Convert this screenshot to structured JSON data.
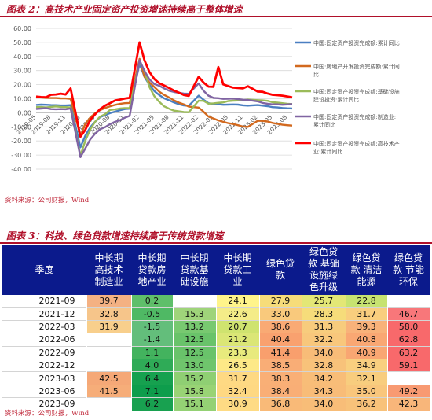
{
  "figure2": {
    "caption": "图表 2：高技术产业固定资产投资增速持续高于整体增速",
    "source": "资料来源：公司财报，Wind"
  },
  "figure3": {
    "caption": "图表 3：科技、绿色贷款增速持续高于传统贷款增速",
    "source": "资料来源：公司财报，Wind"
  },
  "chart_data": [
    {
      "type": "line",
      "title": "",
      "xlabel": "",
      "ylabel": "",
      "ylim": [
        -40,
        60
      ],
      "yticks": [
        "60.00",
        "50.00",
        "40.00",
        "30.00",
        "20.00",
        "10.00",
        "0.00",
        "-10.00",
        "-20.00",
        "-30.00",
        "-40.00"
      ],
      "ytick_values": [
        60,
        50,
        40,
        30,
        20,
        10,
        0,
        -10,
        -20,
        -30,
        -40
      ],
      "x": [
        "2019-05",
        "2019-06",
        "2019-07",
        "2019-08",
        "2019-09",
        "2019-10",
        "2019-11",
        "2019-12",
        "2020-01",
        "2020-02",
        "2020-03",
        "2020-04",
        "2020-05",
        "2020-06",
        "2020-07",
        "2020-08",
        "2020-09",
        "2020-10",
        "2020-11",
        "2020-12",
        "2021-01",
        "2021-02",
        "2021-03",
        "2021-04",
        "2021-05",
        "2021-06",
        "2021-07",
        "2021-08",
        "2021-09",
        "2021-10",
        "2021-11",
        "2021-12",
        "2022-01",
        "2022-02",
        "2022-03",
        "2022-04",
        "2022-05",
        "2022-06",
        "2022-07",
        "2022-08",
        "2022-09",
        "2022-10",
        "2022-11",
        "2022-12",
        "2023-01",
        "2023-02",
        "2023-03",
        "2023-04",
        "2023-05",
        "2023-06",
        "2023-07",
        "2023-08",
        "2023-09"
      ],
      "xtick_labels": [
        "2019-05",
        "2019-08",
        "2019-11",
        "2020-02",
        "2020-05",
        "2020-08",
        "2020-11",
        "2021-02",
        "2021-05",
        "2021-08",
        "2021-11",
        "2022-02",
        "2022-05",
        "2022-08",
        "2022-11",
        "2023-02",
        "2023-05",
        "2023-08"
      ],
      "grid": true,
      "legend_position": "right",
      "series": [
        {
          "name": "中国:固定资产投资完成额:累计同比",
          "color": "#4a7fc1",
          "values": [
            5.6,
            5.8,
            5.7,
            5.5,
            5.4,
            5.2,
            5.2,
            5.4,
            null,
            -24.5,
            -16.1,
            -10.3,
            -6.3,
            -3.1,
            -1.6,
            -0.3,
            0.8,
            1.8,
            2.6,
            2.9,
            null,
            35.0,
            25.6,
            19.9,
            15.4,
            12.6,
            10.3,
            8.9,
            7.3,
            6.1,
            5.2,
            4.9,
            null,
            12.2,
            9.3,
            6.8,
            6.2,
            6.1,
            5.7,
            5.8,
            5.9,
            5.8,
            5.3,
            5.1,
            null,
            5.5,
            5.1,
            4.7,
            4.0,
            3.8,
            3.4,
            3.2,
            3.1
          ]
        },
        {
          "name": "中国:房地产开发投资完成额:累计同比",
          "color": "#d2691e",
          "values": [
            11.2,
            10.9,
            10.6,
            10.5,
            10.5,
            10.3,
            10.2,
            9.9,
            null,
            -16.3,
            -7.7,
            -3.3,
            -0.3,
            1.9,
            3.4,
            4.6,
            5.6,
            6.3,
            6.8,
            7.0,
            null,
            38.3,
            25.6,
            21.6,
            18.3,
            15.0,
            12.7,
            10.9,
            8.8,
            7.2,
            6.0,
            4.4,
            null,
            3.7,
            0.7,
            -2.7,
            -4.0,
            -5.4,
            -6.4,
            -7.4,
            -8.0,
            -8.8,
            -9.8,
            -10.0,
            null,
            -5.7,
            -5.8,
            -6.2,
            -7.2,
            -7.9,
            -8.5,
            -8.8,
            -9.1
          ]
        },
        {
          "name": "中国:固定资产投资完成额:基础设施建设投资:累计同比",
          "color": "#9bbb59",
          "values": [
            4.0,
            4.1,
            3.8,
            4.2,
            4.5,
            4.2,
            4.0,
            3.8,
            null,
            -30.3,
            -19.7,
            -11.8,
            -6.3,
            -2.7,
            -1.0,
            2.0,
            2.4,
            3.0,
            3.3,
            3.4,
            null,
            36.6,
            29.7,
            18.4,
            11.8,
            7.8,
            4.6,
            2.9,
            1.5,
            1.0,
            0.5,
            0.4,
            null,
            8.6,
            8.5,
            6.5,
            6.7,
            7.1,
            7.4,
            8.3,
            8.6,
            8.7,
            8.9,
            9.4,
            null,
            9.0,
            8.8,
            8.5,
            7.5,
            7.2,
            6.8,
            6.4,
            6.2
          ]
        },
        {
          "name": "中国:固定资产投资完成额:制造业:累计同比",
          "color": "#8064a2",
          "values": [
            2.7,
            3.0,
            3.3,
            2.6,
            2.5,
            2.6,
            2.5,
            3.1,
            null,
            -31.5,
            -25.2,
            -18.8,
            -14.8,
            -11.7,
            -10.2,
            -8.1,
            -6.5,
            -5.3,
            -3.5,
            -2.2,
            null,
            37.3,
            29.8,
            23.8,
            20.4,
            19.2,
            17.3,
            15.7,
            14.8,
            14.2,
            13.7,
            13.5,
            null,
            20.9,
            15.6,
            12.2,
            10.6,
            10.4,
            9.9,
            10.0,
            10.1,
            9.7,
            9.3,
            9.1,
            null,
            8.1,
            7.0,
            6.4,
            6.0,
            6.0,
            5.7,
            5.9,
            6.2
          ]
        },
        {
          "name": "中国:固定资产投资完成额:高技术产业:累计同比",
          "color": "#ff0000",
          "values": [
            11.5,
            11.2,
            11.0,
            12.8,
            13.0,
            13.6,
            13.0,
            17.3,
            null,
            -17.0,
            -12.0,
            -5.0,
            -1.0,
            2.6,
            5.1,
            6.8,
            8.7,
            9.4,
            10.1,
            10.6,
            null,
            50.0,
            37.3,
            29.0,
            24.0,
            21.0,
            19.4,
            17.6,
            15.8,
            14.3,
            12.7,
            12.0,
            null,
            25.6,
            21.5,
            18.6,
            18.5,
            32.5,
            20.2,
            19.0,
            17.9,
            17.6,
            17.3,
            18.9,
            null,
            15.1,
            14.9,
            13.7,
            12.8,
            12.5,
            12.2,
            11.6,
            11.0
          ]
        }
      ]
    },
    {
      "type": "table",
      "columns": [
        "季度",
        "中长期\n高技术\n制造业",
        "中长期\n贷款房\n地产业",
        "中长期\n贷款基\n础设施",
        "中长期\n贷款工\n业",
        "绿色贷\n款",
        "绿色贷\n款 基础\n设施绿\n色升级",
        "绿色贷\n款 清洁\n能源",
        "绿色贷\n款 节能\n环保"
      ],
      "rows": [
        {
          "label": "2021-09",
          "cells": [
            "39.7",
            "0.2",
            "",
            "24.1",
            "27.9",
            "25.7",
            "22.8",
            ""
          ]
        },
        {
          "label": "2021-12",
          "cells": [
            "32.8",
            "-0.5",
            "15.3",
            "22.6",
            "33.0",
            "28.3",
            "31.7",
            "46.7"
          ]
        },
        {
          "label": "2022-03",
          "cells": [
            "31.9",
            "-1.5",
            "13.2",
            "20.7",
            "38.6",
            "31.3",
            "39.3",
            "58.0"
          ]
        },
        {
          "label": "2022-06",
          "cells": [
            "",
            "-1.4",
            "12.5",
            "21.2",
            "40.4",
            "32.2",
            "40.8",
            "62.8"
          ]
        },
        {
          "label": "2022-09",
          "cells": [
            "",
            "1.1",
            "12.5",
            "23.3",
            "41.4",
            "34.0",
            "40.9",
            "63.2"
          ]
        },
        {
          "label": "2022-12",
          "cells": [
            "",
            "4.0",
            "13.0",
            "26.5",
            "38.5",
            "32.8",
            "34.9",
            "59.1"
          ]
        },
        {
          "label": "2023-03",
          "cells": [
            "42.5",
            "6.4",
            "15.2",
            "31.7",
            "38.3",
            "34.2",
            "32.1",
            ""
          ]
        },
        {
          "label": "2023-06",
          "cells": [
            "41.5",
            "7.1",
            "15.8",
            "32.4",
            "38.4",
            "34.3",
            "35.0",
            "49.2"
          ]
        },
        {
          "label": "2023-09",
          "cells": [
            "",
            "6.2",
            "15.1",
            "30.9",
            "36.8",
            "34.0",
            "36.2",
            "42.3"
          ]
        }
      ],
      "cell_colors": [
        [
          "#f4b183",
          "#5fbf6a",
          "",
          "#fff48a",
          "#f6dc7a",
          "#e3e776",
          "#c7e371",
          ""
        ],
        [
          "#f6c58a",
          "#4fb964",
          "#9fd47a",
          "#f4ec88",
          "#f9c97c",
          "#f6dc7a",
          "#f9ce7e",
          "#f8777a"
        ],
        [
          "#f8cf8c",
          "#63be7b",
          "#78c970",
          "#cfe36f",
          "#f9aa74",
          "#f7cc7d",
          "#f8b27a",
          "#f8696b"
        ],
        [
          "",
          "#63be7b",
          "#69c36a",
          "#dbe676",
          "#f9a16f",
          "#f8c77c",
          "#f9a773",
          "#f8696b"
        ],
        [
          "",
          "#43b35e",
          "#69c36a",
          "#e8ea7d",
          "#f99f6d",
          "#f8bc78",
          "#f9a672",
          "#f8696b"
        ],
        [
          "",
          "#2fab57",
          "#6fc56c",
          "#fde987",
          "#f9ad76",
          "#f8c27a",
          "#f9cf7f",
          "#f8696b"
        ],
        [
          "#f5a877",
          "#16a14f",
          "#8fcf73",
          "#fed983",
          "#f9af76",
          "#f8bd78",
          "#f8cd7e",
          ""
        ],
        [
          "#f6ad79",
          "#0e9d4c",
          "#99d375",
          "#fed882",
          "#f9ae76",
          "#f8bc78",
          "#f9c67c",
          "#f89a72"
        ],
        [
          "",
          "#18a150",
          "#94d174",
          "#fedb84",
          "#f9ba78",
          "#f8bd78",
          "#f8c27a",
          "#f8b67a"
        ]
      ]
    }
  ]
}
